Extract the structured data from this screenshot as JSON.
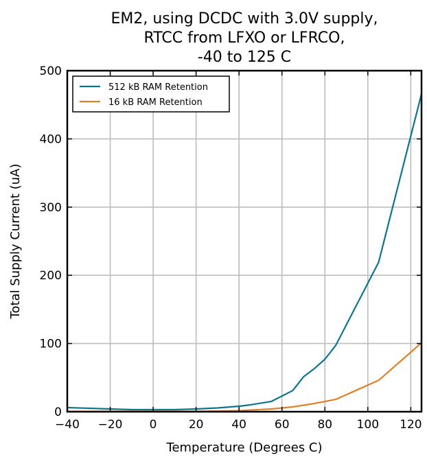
{
  "chart_data": {
    "type": "line",
    "title": [
      "EM2, using DCDC with 3.0V supply,",
      "RTCC from LFXO or LFRCO,",
      "-40 to 125 C"
    ],
    "xlabel": "Temperature (Degrees C)",
    "ylabel": "Total Supply Current (uA)",
    "xlim": [
      -40,
      125
    ],
    "ylim": [
      0,
      500
    ],
    "xticks": [
      -40,
      -20,
      0,
      20,
      40,
      60,
      80,
      100,
      120
    ],
    "xtick_labels": [
      "−40",
      "−20",
      "0",
      "20",
      "40",
      "60",
      "80",
      "100",
      "120"
    ],
    "yticks": [
      0,
      100,
      200,
      300,
      400,
      500
    ],
    "ytick_labels": [
      "0",
      "100",
      "200",
      "300",
      "400",
      "500"
    ],
    "grid": true,
    "legend_position": "top-left",
    "series": [
      {
        "name": "512 kB RAM Retention",
        "color": "#0d7490",
        "x": [
          -40,
          -30,
          -20,
          -10,
          0,
          10,
          20,
          30,
          40,
          45,
          55,
          65,
          70,
          75,
          80,
          85,
          105,
          125
        ],
        "y": [
          6,
          5,
          4,
          3,
          3,
          3,
          4,
          5.5,
          8,
          10,
          15,
          31,
          51,
          63,
          77,
          97,
          219,
          466
        ]
      },
      {
        "name": "16 kB RAM Retention",
        "color": "#e07f25",
        "x": [
          -40,
          -20,
          0,
          20,
          40,
          55,
          65,
          75,
          85,
          105,
          125
        ],
        "y": [
          0.5,
          0.5,
          0.5,
          0.5,
          1.5,
          4,
          7,
          12,
          18,
          46,
          101
        ]
      }
    ]
  }
}
